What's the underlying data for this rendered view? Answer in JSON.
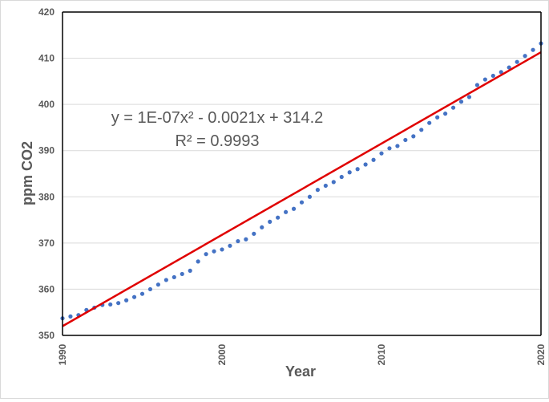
{
  "chart_data": {
    "type": "scatter",
    "title": "",
    "xlabel": "Year",
    "ylabel": "ppm CO2",
    "xlim": [
      1990,
      2020
    ],
    "ylim": [
      350,
      420
    ],
    "x_ticks": [
      1990,
      2000,
      2010,
      2020
    ],
    "y_ticks": [
      350,
      360,
      370,
      380,
      390,
      400,
      410,
      420
    ],
    "grid": "horizontal",
    "colors": {
      "points": "#4472c4",
      "trend": "#e00000",
      "axis": "#000000",
      "grid": "#d9d9d9",
      "text": "#595959"
    },
    "series": [
      {
        "x": [
          1990.0,
          1990.5,
          1991.0,
          1991.5,
          1992.0,
          1992.5,
          1993.0,
          1993.5,
          1994.0,
          1994.5,
          1995.0,
          1995.5,
          1996.0,
          1996.5,
          1997.0,
          1997.5,
          1998.0,
          1998.5,
          1999.0,
          1999.5,
          2000.0,
          2000.5,
          2001.0,
          2001.5,
          2002.0,
          2002.5,
          2003.0,
          2003.5,
          2004.0,
          2004.5,
          2005.0,
          2005.5,
          2006.0,
          2006.5,
          2007.0,
          2007.5,
          2008.0,
          2008.5,
          2009.0,
          2009.5,
          2010.0,
          2010.5,
          2011.0,
          2011.5,
          2012.0,
          2012.5,
          2013.0,
          2013.5,
          2014.0,
          2014.5,
          2015.0,
          2015.5,
          2016.0,
          2016.5,
          2017.0,
          2017.5,
          2018.0,
          2018.5,
          2019.0,
          2019.5,
          2020.0
        ],
        "y": [
          353.7,
          354.1,
          354.4,
          355.5,
          356.0,
          356.6,
          356.7,
          357.0,
          357.6,
          358.3,
          359.0,
          360.0,
          361.0,
          362.0,
          362.6,
          363.3,
          364.0,
          366.0,
          367.6,
          368.2,
          368.6,
          369.4,
          370.4,
          370.8,
          372.0,
          373.4,
          374.6,
          375.5,
          376.7,
          377.4,
          378.8,
          380.0,
          381.5,
          382.4,
          383.2,
          384.3,
          385.3,
          386.0,
          387.0,
          388.0,
          389.4,
          390.5,
          391.0,
          392.3,
          393.1,
          394.5,
          396.0,
          397.2,
          398.0,
          399.3,
          400.6,
          401.6,
          404.2,
          405.4,
          406.2,
          407.0,
          408.0,
          409.2,
          410.5,
          411.8,
          413.2
        ]
      }
    ],
    "trendline": {
      "type": "polynomial",
      "order": 2,
      "equation": "y = 1E-07x² - 0.0021x + 314.2",
      "r_squared": "R² = 0.9993",
      "x": [
        1990,
        2020
      ],
      "y": [
        352.0,
        411.3
      ]
    }
  }
}
